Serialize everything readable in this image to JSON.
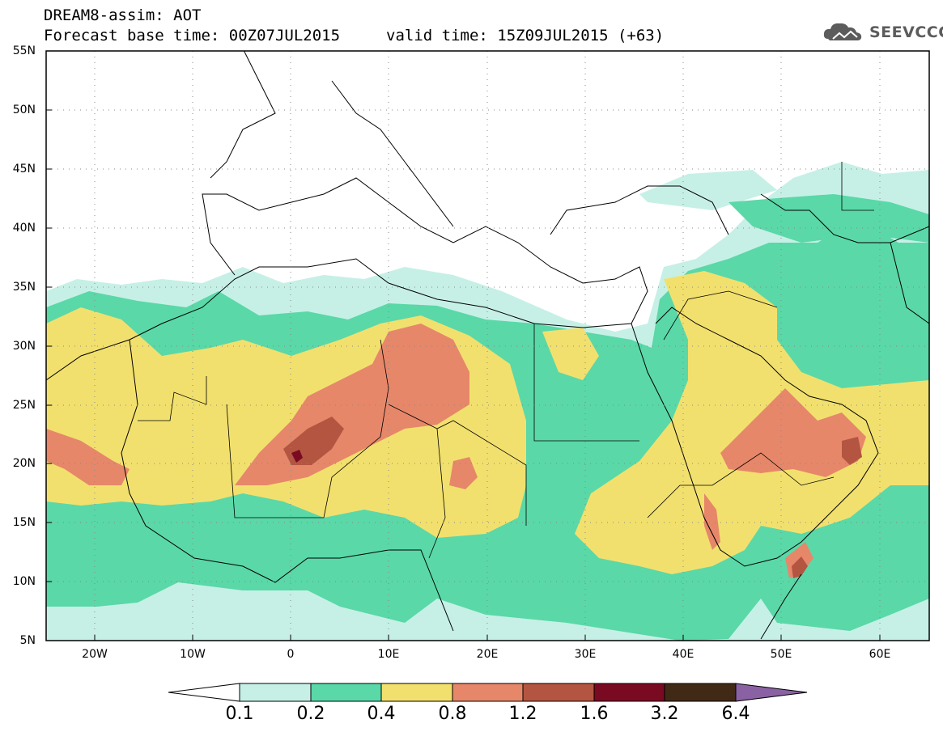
{
  "title": {
    "line1": "DREAM8-assim: AOT",
    "line2": "Forecast base time: 00Z07JUL2015",
    "valid": "valid time: 15Z09JUL2015 (+63)"
  },
  "logo": {
    "text": "SEEVCCC",
    "icon": "cloud-logo-icon"
  },
  "axes": {
    "lat_labels": [
      "55N",
      "50N",
      "45N",
      "40N",
      "35N",
      "30N",
      "25N",
      "20N",
      "15N",
      "10N",
      "5N"
    ],
    "lon_labels": [
      "20W",
      "10W",
      "0",
      "10E",
      "20E",
      "30E",
      "40E",
      "50E",
      "60E"
    ],
    "lat_range": [
      5,
      55
    ],
    "lon_range": [
      -25,
      65
    ],
    "grid": "dotted"
  },
  "colorbar": {
    "labels": [
      "0.1",
      "0.2",
      "0.4",
      "0.8",
      "1.2",
      "1.6",
      "3.2",
      "6.4"
    ],
    "colors": [
      "#ffffff",
      "#c6f0e6",
      "#5ad8a8",
      "#f2e06e",
      "#e6876a",
      "#b35541",
      "#7a0a22",
      "#402a16",
      "#8a62a4"
    ]
  },
  "colors": {
    "level_0_1": "#c6f0e6",
    "level_0_2": "#5ad8a8",
    "level_0_4": "#f2e06e",
    "level_0_8": "#e6876a",
    "level_1_2": "#b35541",
    "level_1_6": "#7a0a22"
  }
}
